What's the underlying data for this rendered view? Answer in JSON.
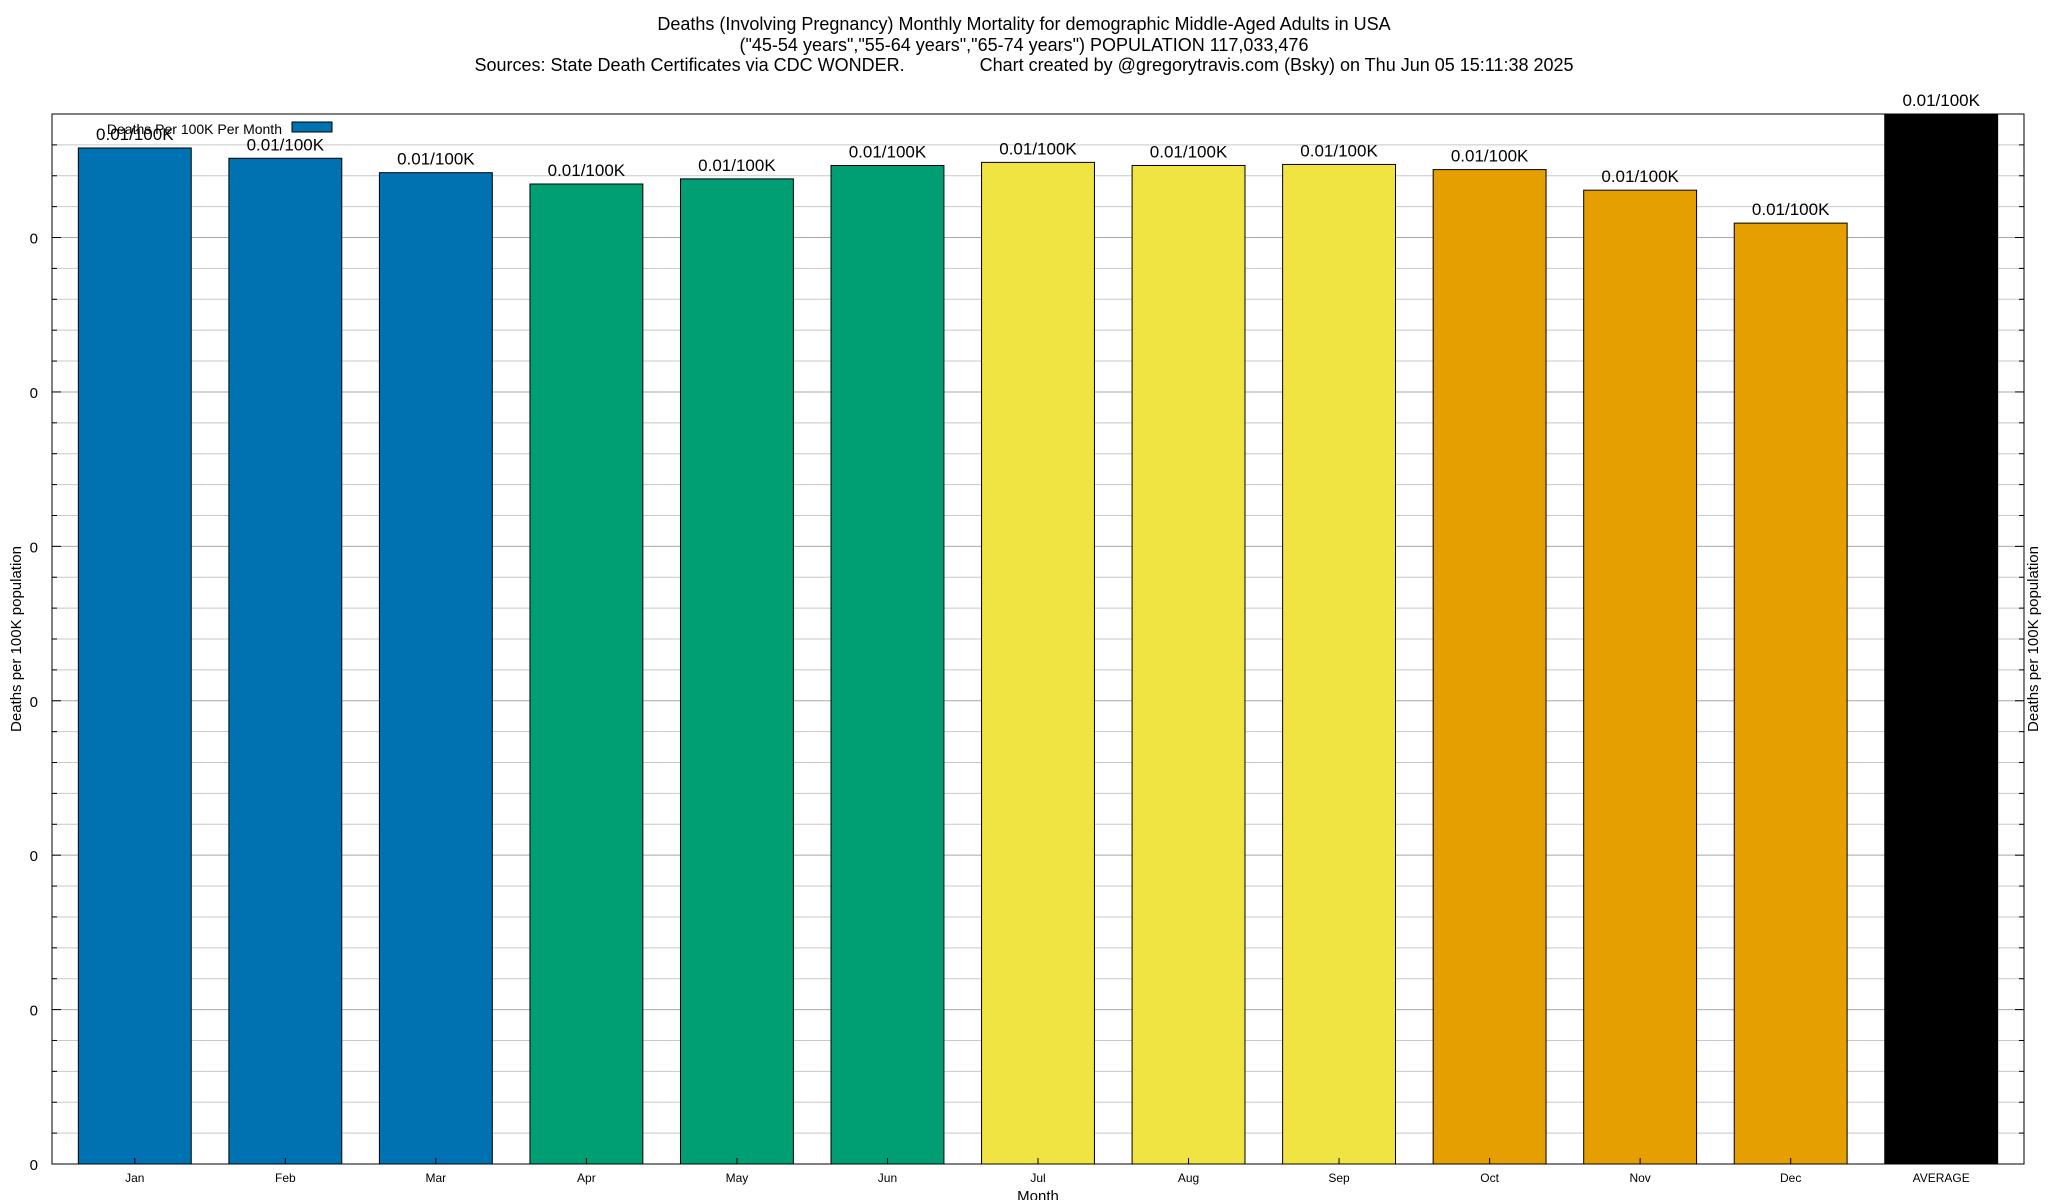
{
  "chart_data": {
    "type": "bar",
    "title": "Deaths (Involving Pregnancy) Monthly Mortality for demographic Middle-Aged Adults in USA",
    "subtitle": "(\"45-54 years\",\"55-64 years\",\"65-74 years\") POPULATION 117,033,476",
    "source_line": "Sources: State Death Certificates via CDC WONDER.",
    "credit_line": "Chart created by @gregorytravis.com (Bsky) on Thu Jun 05 15:11:38 2025",
    "xlabel": "Month",
    "ylabel": "Deaths per 100K population",
    "ylabel_right": "Deaths per 100K population",
    "legend": {
      "label": "Deaths Per 100K Per Month",
      "placement": "top-left"
    },
    "categories": [
      "Jan",
      "Feb",
      "Mar",
      "Apr",
      "May",
      "Jun",
      "Jul",
      "Aug",
      "Sep",
      "Oct",
      "Nov",
      "Dec",
      "AVERAGE"
    ],
    "values": [
      0.00987,
      0.00977,
      0.00963,
      0.00952,
      0.00957,
      0.0097,
      0.00973,
      0.0097,
      0.00971,
      0.00966,
      0.00946,
      0.00914,
      0.0102
    ],
    "data_labels": [
      "0.01/100K",
      "0.01/100K",
      "0.01/100K",
      "0.01/100K",
      "0.01/100K",
      "0.01/100K",
      "0.01/100K",
      "0.01/100K",
      "0.01/100K",
      "0.01/100K",
      "0.01/100K",
      "0.01/100K",
      "0.01/100K"
    ],
    "colors": [
      "#0072b2",
      "#0072b2",
      "#0072b2",
      "#009e73",
      "#009e73",
      "#009e73",
      "#f0e442",
      "#f0e442",
      "#f0e442",
      "#e69f00",
      "#e69f00",
      "#e69f00",
      "#000000"
    ],
    "ylim": [
      0,
      0.0102
    ],
    "y_ticks": [
      0,
      0.0015,
      0.003,
      0.0045,
      0.006,
      0.0075,
      0.009
    ],
    "y_tick_labels": [
      "0",
      "0",
      "0",
      "0",
      "0",
      "0",
      "0"
    ],
    "grid": true
  }
}
